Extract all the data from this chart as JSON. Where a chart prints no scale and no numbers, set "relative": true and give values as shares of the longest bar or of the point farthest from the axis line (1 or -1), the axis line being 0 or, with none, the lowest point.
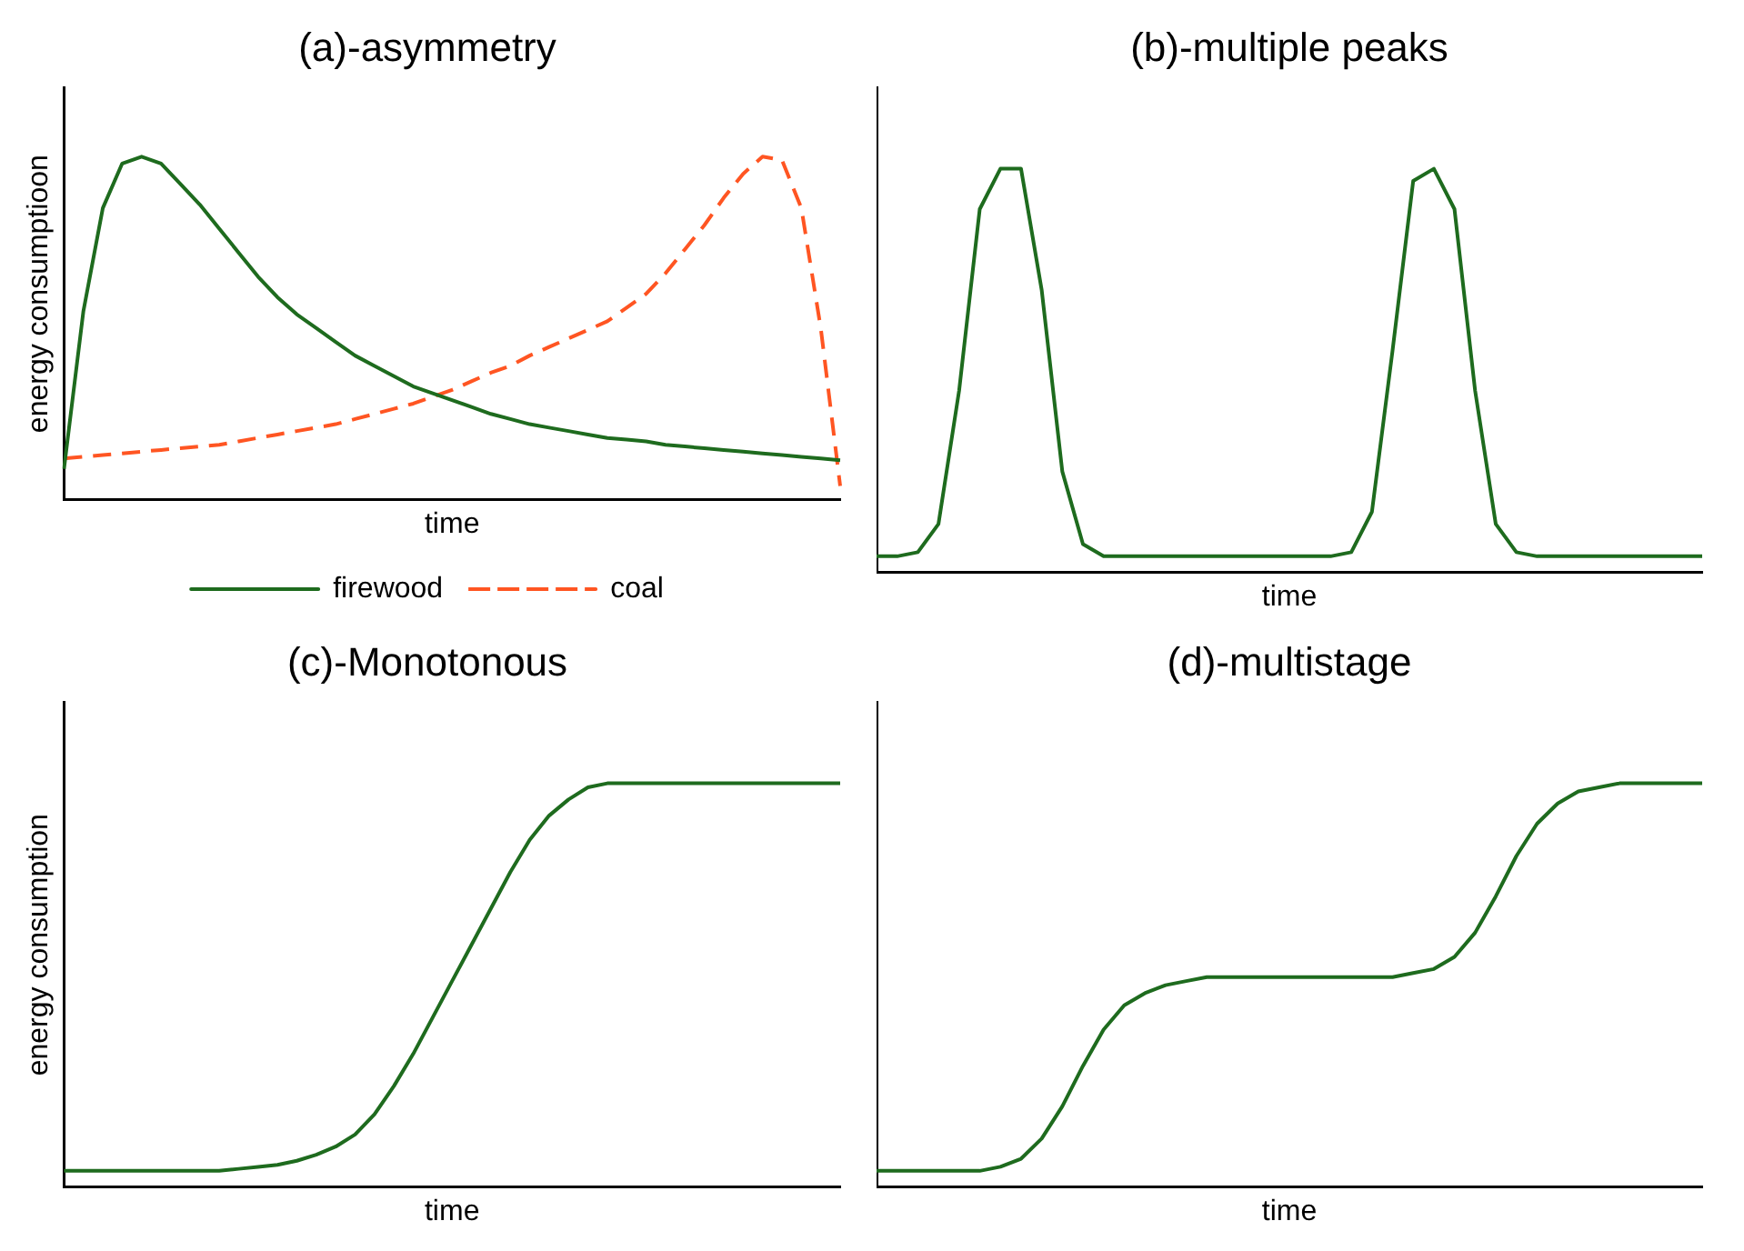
{
  "chart_data": [
    {
      "type": "line",
      "title": "(a)-asymmetry",
      "xlabel": "time",
      "ylabel": "energy consumptioon",
      "relative": true,
      "marker": "none",
      "legend": "bottom",
      "grid": false,
      "categories": [
        null,
        null,
        null,
        null,
        null,
        null,
        null,
        null,
        null,
        null,
        null,
        null,
        null,
        null,
        null,
        null,
        null,
        null,
        null,
        null,
        null,
        null,
        null,
        null,
        null,
        null,
        null,
        null,
        null,
        null,
        null,
        null,
        null,
        null,
        null,
        null,
        null,
        null,
        null,
        null,
        null
      ],
      "series": [
        {
          "name": "firewood",
          "color": "#1e6b1e",
          "line_style": "solid",
          "values": [
            0.09,
            0.55,
            0.85,
            0.98,
            1.0,
            0.98,
            0.92,
            0.86,
            0.79,
            0.72,
            0.65,
            0.59,
            0.54,
            0.5,
            0.46,
            0.42,
            0.39,
            0.36,
            0.33,
            0.31,
            0.29,
            0.27,
            0.25,
            0.235,
            0.22,
            0.21,
            0.2,
            0.19,
            0.18,
            0.175,
            0.17,
            0.16,
            0.155,
            0.15,
            0.145,
            0.14,
            0.135,
            0.13,
            0.125,
            0.12,
            0.115
          ]
        },
        {
          "name": "coal",
          "color": "#ff5522",
          "line_style": "dashed",
          "values": [
            0.12,
            0.125,
            0.13,
            0.135,
            0.14,
            0.145,
            0.15,
            0.155,
            0.16,
            0.17,
            0.18,
            0.19,
            0.2,
            0.21,
            0.22,
            0.235,
            0.25,
            0.265,
            0.28,
            0.3,
            0.32,
            0.345,
            0.37,
            0.39,
            0.42,
            0.445,
            0.47,
            0.495,
            0.52,
            0.56,
            0.6,
            0.66,
            0.73,
            0.8,
            0.88,
            0.95,
            1.0,
            0.99,
            0.85,
            0.5,
            0.04
          ]
        }
      ]
    },
    {
      "type": "line",
      "title": "(b)-multiple peaks",
      "xlabel": "time",
      "relative": true,
      "marker": "none",
      "grid": false,
      "categories": [
        null,
        null,
        null,
        null,
        null,
        null,
        null,
        null,
        null,
        null,
        null,
        null,
        null,
        null,
        null,
        null,
        null,
        null,
        null,
        null,
        null,
        null,
        null,
        null,
        null,
        null,
        null,
        null,
        null,
        null,
        null,
        null,
        null,
        null,
        null,
        null,
        null,
        null,
        null,
        null,
        null
      ],
      "series": [
        {
          "color": "#1e6b1e",
          "values": [
            0.04,
            0.04,
            0.05,
            0.12,
            0.45,
            0.9,
            1.0,
            1.0,
            0.7,
            0.25,
            0.07,
            0.04,
            0.04,
            0.04,
            0.04,
            0.04,
            0.04,
            0.04,
            0.04,
            0.04,
            0.04,
            0.04,
            0.04,
            0.05,
            0.15,
            0.55,
            0.97,
            1.0,
            0.9,
            0.45,
            0.12,
            0.05,
            0.04,
            0.04,
            0.04,
            0.04,
            0.04,
            0.04,
            0.04,
            0.04,
            0.04
          ]
        }
      ]
    },
    {
      "type": "line",
      "title": "(c)-Monotonous",
      "xlabel": "time",
      "ylabel": "energy consumption",
      "relative": true,
      "marker": "none",
      "grid": false,
      "categories": [
        null,
        null,
        null,
        null,
        null,
        null,
        null,
        null,
        null,
        null,
        null,
        null,
        null,
        null,
        null,
        null,
        null,
        null,
        null,
        null,
        null,
        null,
        null,
        null,
        null,
        null,
        null,
        null,
        null,
        null,
        null,
        null,
        null,
        null,
        null,
        null,
        null,
        null,
        null,
        null,
        null
      ],
      "series": [
        {
          "color": "#1e6b1e",
          "values": [
            0.04,
            0.04,
            0.04,
            0.04,
            0.04,
            0.04,
            0.04,
            0.04,
            0.04,
            0.045,
            0.05,
            0.055,
            0.065,
            0.08,
            0.1,
            0.13,
            0.18,
            0.25,
            0.33,
            0.42,
            0.51,
            0.6,
            0.69,
            0.78,
            0.86,
            0.92,
            0.96,
            0.99,
            1.0,
            1.0,
            1.0,
            1.0,
            1.0,
            1.0,
            1.0,
            1.0,
            1.0,
            1.0,
            1.0,
            1.0,
            1.0
          ]
        }
      ]
    },
    {
      "type": "line",
      "title": "(d)-multistage",
      "xlabel": "time",
      "relative": true,
      "marker": "none",
      "grid": false,
      "categories": [
        null,
        null,
        null,
        null,
        null,
        null,
        null,
        null,
        null,
        null,
        null,
        null,
        null,
        null,
        null,
        null,
        null,
        null,
        null,
        null,
        null,
        null,
        null,
        null,
        null,
        null,
        null,
        null,
        null,
        null,
        null,
        null,
        null,
        null,
        null,
        null,
        null,
        null,
        null,
        null,
        null
      ],
      "series": [
        {
          "color": "#1e6b1e",
          "values": [
            0.04,
            0.04,
            0.04,
            0.04,
            0.04,
            0.04,
            0.05,
            0.07,
            0.12,
            0.2,
            0.3,
            0.39,
            0.45,
            0.48,
            0.5,
            0.51,
            0.52,
            0.52,
            0.52,
            0.52,
            0.52,
            0.52,
            0.52,
            0.52,
            0.52,
            0.52,
            0.53,
            0.54,
            0.57,
            0.63,
            0.72,
            0.82,
            0.9,
            0.95,
            0.98,
            0.99,
            1.0,
            1.0,
            1.0,
            1.0,
            1.0
          ]
        }
      ]
    }
  ]
}
